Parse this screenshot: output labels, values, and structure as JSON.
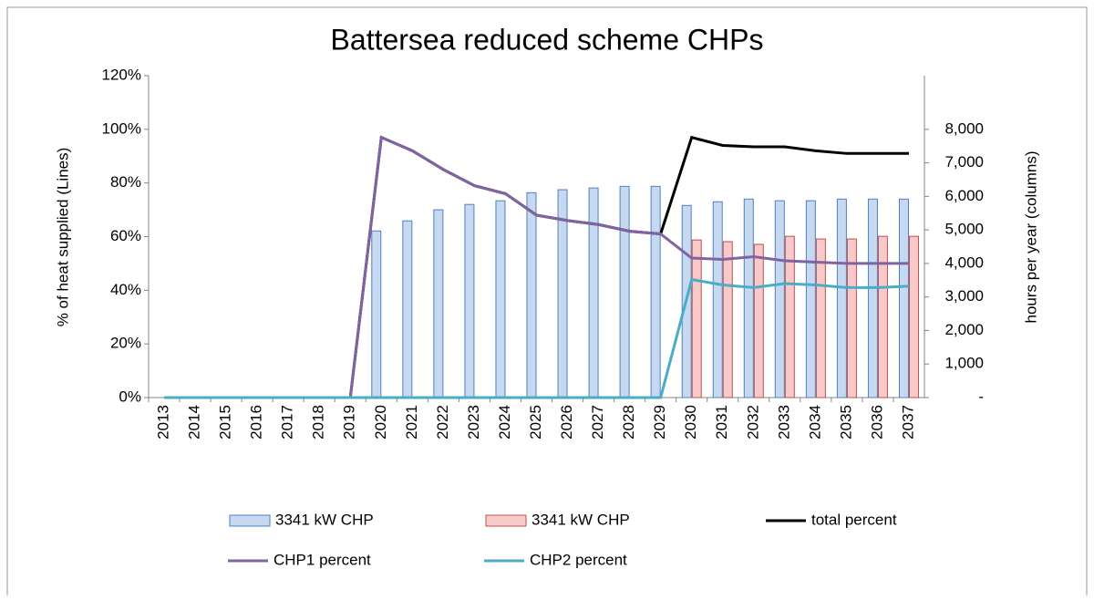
{
  "chart_data": {
    "type": "bar",
    "title": "Battersea reduced scheme CHPs",
    "ylabel": "% of heat supplied (Lines)",
    "y2label": "hours per year  (columns)",
    "categories": [
      "2013",
      "2014",
      "2015",
      "2016",
      "2017",
      "2018",
      "2019",
      "2020",
      "2021",
      "2022",
      "2023",
      "2024",
      "2025",
      "2026",
      "2027",
      "2028",
      "2029",
      "2030",
      "2031",
      "2032",
      "2033",
      "2034",
      "2035",
      "2036",
      "2037"
    ],
    "ylim": [
      0,
      120
    ],
    "yticks": [
      {
        "value": 0,
        "label": "0%"
      },
      {
        "value": 20,
        "label": "20%"
      },
      {
        "value": 40,
        "label": "40%"
      },
      {
        "value": 60,
        "label": "60%"
      },
      {
        "value": 80,
        "label": "80%"
      },
      {
        "value": 100,
        "label": "100%"
      },
      {
        "value": 120,
        "label": "120%"
      }
    ],
    "y2lim": [
      0,
      9600
    ],
    "y2ticks": [
      {
        "value": 0,
        "label": "-"
      },
      {
        "value": 1000,
        "label": "1,000"
      },
      {
        "value": 2000,
        "label": "2,000"
      },
      {
        "value": 3000,
        "label": "3,000"
      },
      {
        "value": 4000,
        "label": "4,000"
      },
      {
        "value": 5000,
        "label": "5,000"
      },
      {
        "value": 6000,
        "label": "6,000"
      },
      {
        "value": 7000,
        "label": "7,000"
      },
      {
        "value": 8000,
        "label": "8,000"
      }
    ],
    "series": [
      {
        "name": "3341 kW CHP",
        "type": "bar",
        "axis": "y2",
        "color": "#c6d9f1",
        "stroke": "#4f81bd",
        "values": [
          0,
          0,
          0,
          0,
          0,
          0,
          0,
          4970,
          5270,
          5600,
          5760,
          5870,
          6110,
          6200,
          6250,
          6300,
          6300,
          5730,
          5840,
          5920,
          5870,
          5870,
          5920,
          5920,
          5920
        ]
      },
      {
        "name": "3341 kW CHP",
        "type": "bar",
        "axis": "y2",
        "color": "#f7c9c8",
        "stroke": "#c0504d",
        "values": [
          0,
          0,
          0,
          0,
          0,
          0,
          0,
          0,
          0,
          0,
          0,
          0,
          0,
          0,
          0,
          0,
          0,
          4700,
          4650,
          4570,
          4810,
          4730,
          4730,
          4810,
          4810
        ]
      },
      {
        "name": "total percent",
        "type": "line",
        "color": "#000000",
        "values": [
          0,
          0,
          0,
          0,
          0,
          0,
          0,
          97,
          92,
          85,
          79,
          76,
          68,
          66,
          64.5,
          62,
          61,
          97,
          94,
          93.5,
          93.5,
          92,
          91,
          91,
          91
        ]
      },
      {
        "name": "CHP1 percent",
        "type": "line",
        "color": "#8064a2",
        "values": [
          0,
          0,
          0,
          0,
          0,
          0,
          0,
          97,
          92,
          85,
          79,
          76,
          68,
          66,
          64.5,
          62,
          61,
          52,
          51.5,
          52.5,
          51,
          50.5,
          50,
          50,
          50
        ]
      },
      {
        "name": "CHP2 percent",
        "type": "line",
        "color": "#4bacc6",
        "values": [
          0,
          0,
          0,
          0,
          0,
          0,
          0,
          0,
          0,
          0,
          0,
          0,
          0,
          0,
          0,
          0,
          0,
          44,
          42,
          41,
          42.5,
          42,
          41,
          41,
          41.5
        ]
      }
    ]
  }
}
